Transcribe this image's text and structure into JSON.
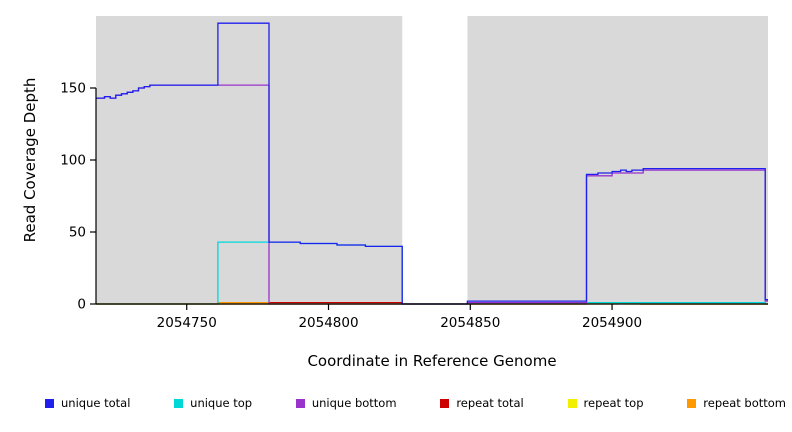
{
  "chart_data": {
    "type": "line",
    "line_style": "step",
    "title": "",
    "xlabel": "Coordinate in Reference Genome",
    "ylabel": "Read Coverage Depth",
    "xlim": [
      2054718,
      2054955
    ],
    "ylim": [
      0,
      200
    ],
    "x_ticks": [
      2054750,
      2054800,
      2054850,
      2054900
    ],
    "y_ticks": [
      0,
      50,
      100,
      150
    ],
    "grid": false,
    "background_color": "#ffffff",
    "shaded_regions": [
      {
        "name": "left-gray-region",
        "x_start": 2054718,
        "x_end": 2054826,
        "color": "#d9d9d9"
      },
      {
        "name": "right-gray-region",
        "x_start": 2054849,
        "x_end": 2054955,
        "color": "#d9d9d9"
      }
    ],
    "series": [
      {
        "name": "repeat-total",
        "color": "#cc0000",
        "points": [
          [
            2054718,
            0
          ],
          [
            2054779,
            1
          ],
          [
            2054826,
            0
          ],
          [
            2054891,
            1
          ],
          [
            2054910,
            0
          ]
        ]
      },
      {
        "name": "repeat-top",
        "color": "#f0f000",
        "points": [
          [
            2054718,
            0
          ],
          [
            2054891,
            1
          ],
          [
            2054905,
            0
          ]
        ]
      },
      {
        "name": "repeat-bottom",
        "color": "#ff9900",
        "points": [
          [
            2054718,
            0
          ],
          [
            2054761,
            1
          ],
          [
            2054779,
            0
          ],
          [
            2054902,
            1
          ],
          [
            2054910,
            0
          ]
        ]
      },
      {
        "name": "unique-top",
        "color": "#00d8d8",
        "points": [
          [
            2054718,
            0
          ],
          [
            2054761,
            43
          ],
          [
            2054790,
            42
          ],
          [
            2054803,
            41
          ],
          [
            2054813,
            40
          ],
          [
            2054826,
            0
          ],
          [
            2054849,
            1
          ],
          [
            2054891,
            1
          ],
          [
            2054911,
            1
          ],
          [
            2054954,
            0
          ]
        ]
      },
      {
        "name": "unique-bottom",
        "color": "#9933cc",
        "points": [
          [
            2054718,
            143
          ],
          [
            2054721,
            144
          ],
          [
            2054723,
            143
          ],
          [
            2054725,
            145
          ],
          [
            2054727,
            146
          ],
          [
            2054729,
            147
          ],
          [
            2054731,
            148
          ],
          [
            2054733,
            150
          ],
          [
            2054735,
            151
          ],
          [
            2054737,
            152
          ],
          [
            2054779,
            0
          ],
          [
            2054849,
            1
          ],
          [
            2054891,
            89
          ],
          [
            2054900,
            91
          ],
          [
            2054911,
            93
          ],
          [
            2054954,
            2
          ]
        ]
      },
      {
        "name": "unique-total",
        "color": "#2020ee",
        "points": [
          [
            2054718,
            143
          ],
          [
            2054721,
            144
          ],
          [
            2054723,
            143
          ],
          [
            2054725,
            145
          ],
          [
            2054727,
            146
          ],
          [
            2054729,
            147
          ],
          [
            2054731,
            148
          ],
          [
            2054733,
            150
          ],
          [
            2054735,
            151
          ],
          [
            2054737,
            152
          ],
          [
            2054761,
            195
          ],
          [
            2054779,
            43
          ],
          [
            2054790,
            42
          ],
          [
            2054803,
            41
          ],
          [
            2054813,
            40
          ],
          [
            2054826,
            0
          ],
          [
            2054849,
            2
          ],
          [
            2054891,
            90
          ],
          [
            2054895,
            91
          ],
          [
            2054900,
            92
          ],
          [
            2054903,
            93
          ],
          [
            2054905,
            92
          ],
          [
            2054907,
            93
          ],
          [
            2054911,
            94
          ],
          [
            2054954,
            3
          ]
        ]
      }
    ],
    "legend": {
      "position": "bottom",
      "entries": [
        {
          "label": "unique total",
          "color": "#2020ee"
        },
        {
          "label": "unique top",
          "color": "#00d8d8"
        },
        {
          "label": "unique bottom",
          "color": "#9933cc"
        },
        {
          "label": "repeat total",
          "color": "#cc0000"
        },
        {
          "label": "repeat top",
          "color": "#f0f000"
        },
        {
          "label": "repeat bottom",
          "color": "#ff9900"
        }
      ]
    }
  }
}
